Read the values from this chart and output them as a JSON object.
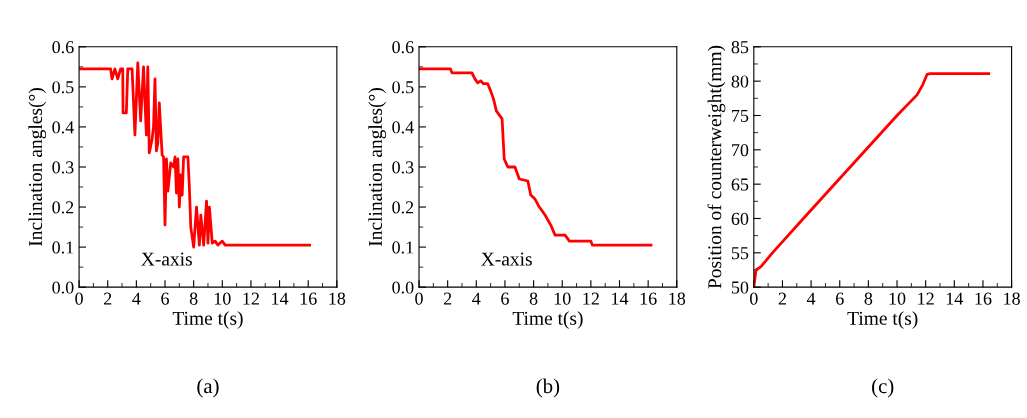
{
  "chart_data": [
    {
      "type": "line",
      "xlabel": "Time t(s)",
      "ylabel": "Inclination angles(°)",
      "xlim": [
        0,
        18
      ],
      "xticks": [
        0,
        2,
        4,
        6,
        8,
        10,
        12,
        14,
        16,
        18
      ],
      "ylim": [
        0,
        0.6
      ],
      "yticks": [
        {
          "value": 0,
          "label": "0.0"
        },
        0.1,
        0.2,
        0.3,
        0.4,
        0.5,
        0.6
      ],
      "grid": false,
      "legend": false,
      "annotations": [
        "(a)"
      ],
      "series": [
        {
          "name": "X-axis",
          "color": "#ff0000",
          "x": [
            0,
            2.2,
            2.3,
            2.5,
            2.7,
            2.9,
            3.05,
            3.07,
            3.3,
            3.4,
            3.7,
            3.9,
            4.1,
            4.3,
            4.5,
            4.7,
            4.8,
            4.9,
            5.1,
            5.2,
            5.3,
            5.4,
            5.5,
            5.6,
            5.8,
            5.9,
            6.0,
            6.1,
            6.2,
            6.4,
            6.6,
            6.7,
            6.8,
            6.9,
            7.0,
            7.1,
            7.2,
            7.3,
            7.6,
            7.7,
            7.8,
            8.0,
            8.2,
            8.4,
            8.5,
            8.7,
            8.9,
            9.0,
            9.1,
            9.3,
            9.5,
            9.7,
            10.0,
            10.2,
            16.1
          ],
          "values": [
            0.545,
            0.545,
            0.52,
            0.545,
            0.52,
            0.545,
            0.545,
            0.435,
            0.435,
            0.545,
            0.545,
            0.38,
            0.56,
            0.415,
            0.55,
            0.38,
            0.55,
            0.335,
            0.37,
            0.4,
            0.52,
            0.34,
            0.36,
            0.46,
            0.33,
            0.325,
            0.155,
            0.32,
            0.24,
            0.31,
            0.3,
            0.325,
            0.235,
            0.32,
            0.2,
            0.28,
            0.23,
            0.325,
            0.325,
            0.25,
            0.15,
            0.1,
            0.2,
            0.105,
            0.18,
            0.105,
            0.215,
            0.11,
            0.2,
            0.11,
            0.115,
            0.105,
            0.115,
            0.105,
            0.105
          ]
        }
      ]
    },
    {
      "type": "line",
      "xlabel": "Time t(s)",
      "ylabel": "Inclination angles(°)",
      "xlim": [
        0,
        18
      ],
      "xticks": [
        0,
        2,
        4,
        6,
        8,
        10,
        12,
        14,
        16,
        18
      ],
      "ylim": [
        0,
        0.6
      ],
      "yticks": [
        {
          "value": 0,
          "label": "0.0"
        },
        0.1,
        0.2,
        0.3,
        0.4,
        0.5,
        0.6
      ],
      "grid": false,
      "legend": false,
      "annotations": [
        "(b)"
      ],
      "series": [
        {
          "name": "X-axis",
          "color": "#ff0000",
          "x": [
            0,
            2.2,
            2.3,
            3.7,
            3.9,
            4.1,
            4.3,
            4.5,
            4.8,
            5.0,
            5.2,
            5.4,
            5.6,
            5.8,
            5.95,
            6.2,
            6.7,
            7.0,
            7.6,
            7.8,
            8.1,
            8.4,
            8.8,
            9.2,
            9.5,
            10.2,
            10.5,
            12.0,
            12.1,
            16.2
          ],
          "values": [
            0.545,
            0.545,
            0.535,
            0.535,
            0.52,
            0.51,
            0.515,
            0.508,
            0.508,
            0.49,
            0.47,
            0.44,
            0.43,
            0.42,
            0.32,
            0.3,
            0.3,
            0.27,
            0.265,
            0.23,
            0.22,
            0.2,
            0.18,
            0.155,
            0.13,
            0.13,
            0.115,
            0.115,
            0.105,
            0.105
          ]
        }
      ]
    },
    {
      "type": "line",
      "xlabel": "Time t(s)",
      "ylabel": "Position of counterweight(mm)",
      "xlim": [
        0,
        18
      ],
      "xticks": [
        0,
        2,
        4,
        6,
        8,
        10,
        12,
        14,
        16,
        18
      ],
      "ylim": [
        50,
        85
      ],
      "yticks": [
        50,
        55,
        60,
        65,
        70,
        75,
        80,
        85
      ],
      "grid": false,
      "legend": false,
      "annotations": [
        "(c)"
      ],
      "series": [
        {
          "color": "#ff0000",
          "x": [
            0,
            0.15,
            0.5,
            1.3,
            3.46,
            10.0,
            11.4,
            11.8,
            12.1,
            12.3,
            16.4
          ],
          "values": [
            50,
            52.5,
            53,
            55,
            60,
            75,
            78,
            79.5,
            81,
            81.1,
            81.1
          ]
        }
      ]
    }
  ]
}
